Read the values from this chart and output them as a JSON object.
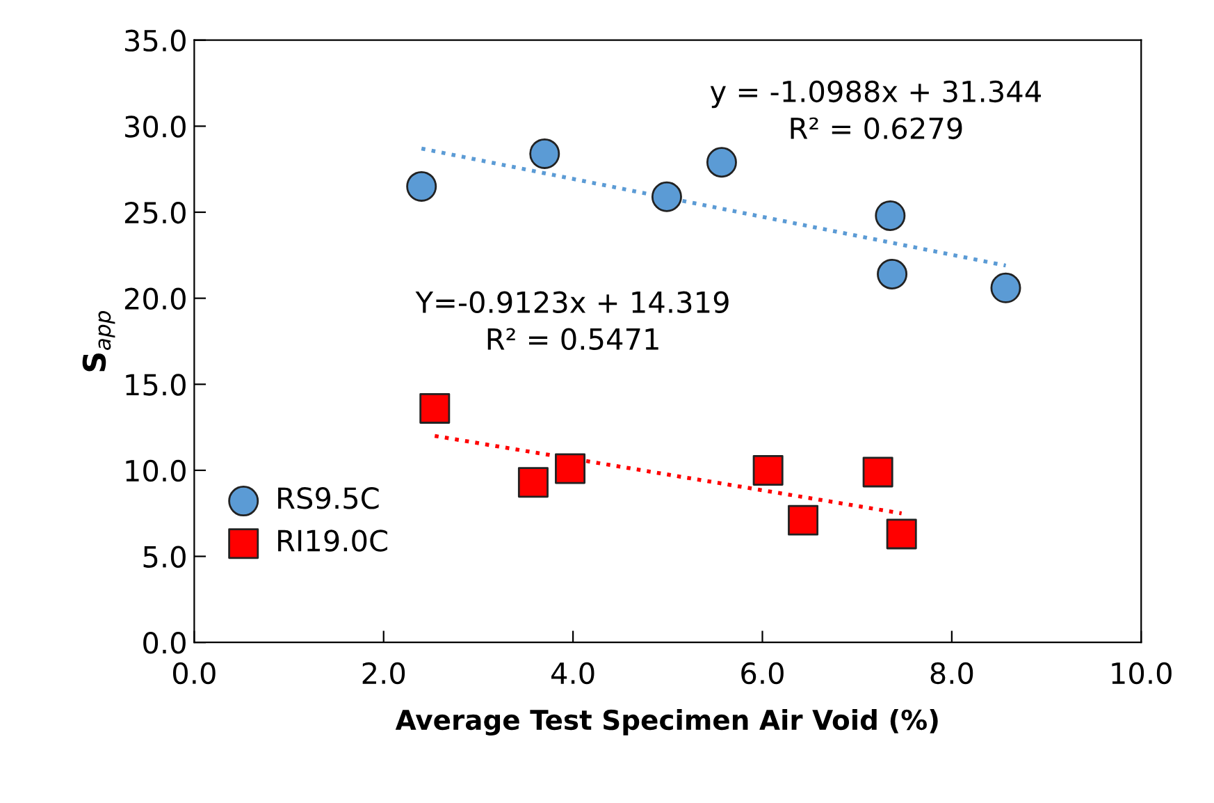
{
  "chart_data": {
    "type": "scatter",
    "xlabel": "Average Test Specimen Air Void (%)",
    "ylabel": "S$_{app}$",
    "xlim": [
      0,
      10
    ],
    "ylim": [
      0,
      35
    ],
    "xticks": [
      {
        "value": 0,
        "label": "0.0"
      },
      {
        "value": 2,
        "label": "2.0"
      },
      {
        "value": 4,
        "label": "4.0"
      },
      {
        "value": 6,
        "label": "6.0"
      },
      {
        "value": 8,
        "label": "8.0"
      },
      {
        "value": 10,
        "label": "10.0"
      }
    ],
    "yticks": [
      {
        "value": 0,
        "label": "0.0"
      },
      {
        "value": 5,
        "label": "5.0"
      },
      {
        "value": 10,
        "label": "10.0"
      },
      {
        "value": 15,
        "label": "15.0"
      },
      {
        "value": 20,
        "label": "20.0"
      },
      {
        "value": 25,
        "label": "25.0"
      },
      {
        "value": 30,
        "label": "30.0"
      },
      {
        "value": 35,
        "label": "35.0"
      }
    ],
    "grid": false,
    "legend": "left",
    "series": [
      {
        "name": "RS9.5C",
        "marker": "circle",
        "color": "#5b9bd5",
        "x": [
          2.4,
          3.7,
          4.99,
          5.57,
          7.35,
          7.37,
          8.57
        ],
        "values": [
          26.5,
          28.4,
          25.9,
          27.9,
          24.8,
          21.4,
          20.6
        ]
      },
      {
        "name": "RI19.0C",
        "marker": "square",
        "color": "#ff0000",
        "x": [
          2.54,
          3.58,
          3.97,
          6.06,
          6.43,
          7.22,
          7.47
        ],
        "values": [
          13.6,
          9.3,
          10.1,
          10.0,
          7.1,
          9.9,
          6.3
        ]
      },
      {
        "type": "line",
        "line_style": "dotted",
        "color": "#5b9bd5",
        "x": [
          2.4,
          8.57
        ],
        "values": [
          28.7,
          21.9
        ]
      },
      {
        "type": "line",
        "line_style": "dotted",
        "color": "#ff0000",
        "x": [
          2.54,
          7.47
        ],
        "values": [
          12.0,
          7.5
        ]
      }
    ],
    "annotations": [
      "y = -1.0988x + 31.344\nR² = 0.6279",
      "Y=-0.9123x + 14.319\nR² = 0.5471"
    ]
  }
}
